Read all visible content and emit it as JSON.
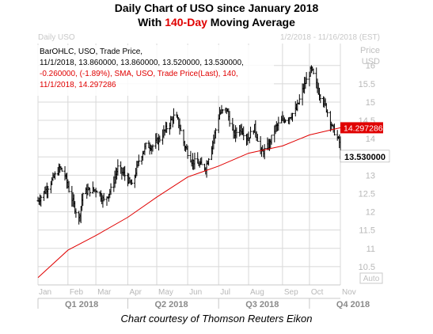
{
  "title": {
    "line1": "Daily Chart of USO since January 2018",
    "line2_pre": "With ",
    "line2_red": "140-Day",
    "line2_post": " Moving Average"
  },
  "caption": "Chart courtesy of Thomson Reuters Eikon",
  "header": {
    "left": "Daily USO",
    "right": "1/2/2018 - 11/16/2018 (EST)"
  },
  "legend": {
    "line1": "BarOHLC, USO, Trade Price,",
    "line2": "11/1/2018, 13.860000, 13.860000, 13.520000, 13.530000,",
    "line3": "-0.260000, (-1.89%), SMA, USO, Trade Price(Last),   140,",
    "line4": "11/1/2018, 14.297286"
  },
  "axis_header": {
    "line1": "Price",
    "line2": "USD"
  },
  "auto_label": "Auto",
  "price_tag": "13.530000",
  "sma_tag": "14.297286",
  "colors": {
    "bars": "#000000",
    "sma": "#e00000",
    "grid": "#d8d8d8",
    "price_tag_bg": "#ffffff",
    "sma_tag_bg": "#e00000"
  },
  "chart_data": {
    "type": "line",
    "title": "Daily Chart of USO since January 2018 With 140-Day Moving Average",
    "ylim": [
      10,
      16.6
    ],
    "y_ticks": [
      "10.5",
      "11",
      "11.5",
      "12",
      "12.5",
      "13",
      "13.5",
      "14",
      "14.5",
      "15",
      "15.5",
      "16"
    ],
    "months": [
      "Jan",
      "Feb",
      "Mar",
      "Apr",
      "May",
      "Jun",
      "Jul",
      "Aug",
      "Sep",
      "Oct",
      "Nov"
    ],
    "quarters": [
      "Q1 2018",
      "Q2 2018",
      "Q3 2018",
      "Q4 2018"
    ],
    "grid": true,
    "series": [
      {
        "name": "BarOHLC, USO, Trade Price",
        "style": "ohlc-bars",
        "x": [
          "2018-01-02",
          "2018-01-10",
          "2018-01-17",
          "2018-01-24",
          "2018-01-29",
          "2018-02-02",
          "2018-02-08",
          "2018-02-12",
          "2018-02-16",
          "2018-02-23",
          "2018-03-02",
          "2018-03-09",
          "2018-03-16",
          "2018-03-23",
          "2018-03-30",
          "2018-04-06",
          "2018-04-13",
          "2018-04-20",
          "2018-04-27",
          "2018-05-04",
          "2018-05-11",
          "2018-05-18",
          "2018-05-22",
          "2018-05-29",
          "2018-06-05",
          "2018-06-12",
          "2018-06-19",
          "2018-06-26",
          "2018-07-03",
          "2018-07-10",
          "2018-07-17",
          "2018-07-24",
          "2018-07-31",
          "2018-08-07",
          "2018-08-14",
          "2018-08-21",
          "2018-08-28",
          "2018-09-04",
          "2018-09-11",
          "2018-09-18",
          "2018-09-25",
          "2018-10-03",
          "2018-10-10",
          "2018-10-17",
          "2018-10-24",
          "2018-10-31",
          "2018-11-01"
        ],
        "close": [
          12.3,
          12.6,
          12.9,
          13.2,
          13.0,
          12.6,
          12.1,
          11.8,
          12.5,
          12.6,
          12.6,
          12.3,
          12.6,
          13.2,
          13.0,
          12.7,
          13.4,
          13.8,
          13.8,
          14.0,
          14.3,
          14.6,
          14.5,
          13.8,
          13.4,
          13.3,
          13.2,
          13.9,
          14.7,
          14.8,
          14.1,
          14.3,
          14.0,
          14.3,
          13.6,
          13.8,
          14.3,
          14.5,
          14.6,
          14.8,
          15.4,
          15.9,
          15.3,
          14.9,
          14.3,
          13.9,
          13.53
        ]
      },
      {
        "name": "SMA, USO, Trade Price(Last), 140",
        "style": "line",
        "x": [
          "2018-01-02",
          "2018-02-01",
          "2018-03-01",
          "2018-04-02",
          "2018-05-01",
          "2018-06-01",
          "2018-07-02",
          "2018-08-01",
          "2018-09-04",
          "2018-10-01",
          "2018-11-01"
        ],
        "values": [
          10.2,
          10.95,
          11.35,
          11.85,
          12.4,
          12.95,
          13.25,
          13.6,
          13.8,
          14.1,
          14.297286
        ]
      }
    ]
  }
}
